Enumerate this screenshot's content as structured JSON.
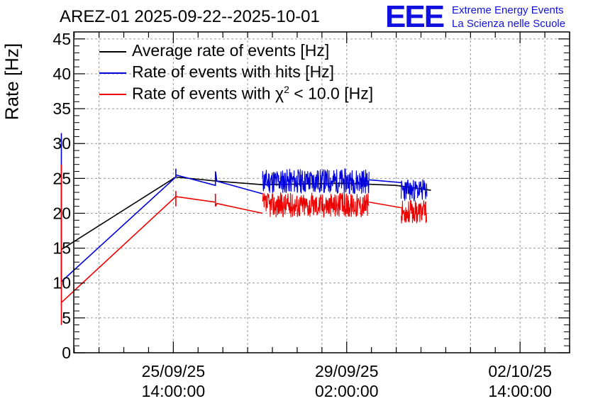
{
  "header": {
    "title": "AREZ-01 2025-09-22--2025-10-01",
    "logo_text": "EEE",
    "logo_line1": "Extreme Energy Events",
    "logo_line2": "La Scienza nelle Scuole"
  },
  "colors": {
    "average": "#000000",
    "hits": "#0000dd",
    "chi2": "#ee0000",
    "logo": "#1010e0"
  },
  "chart_data": {
    "type": "line",
    "title": "AREZ-01 2025-09-22--2025-10-01",
    "ylabel": "Rate [Hz]",
    "xlabel": "",
    "ylim": [
      0,
      46
    ],
    "xlim_days": [
      -2.01,
      8.0
    ],
    "grid": true,
    "yticks": [
      0,
      5,
      10,
      15,
      20,
      25,
      30,
      35,
      40,
      45
    ],
    "xticks": [
      {
        "day": 0,
        "date": "25/09/25",
        "time": "14:00:00"
      },
      {
        "day": 3.5,
        "date": "29/09/25",
        "time": "02:00:00"
      },
      {
        "day": 7,
        "date": "02/10/25",
        "time": "14:00:00"
      }
    ],
    "legend": {
      "position": "top-left",
      "entries": [
        {
          "key": "average",
          "label": "Average rate of events [Hz]"
        },
        {
          "key": "hits",
          "label": "Rate of events with hits [Hz]"
        },
        {
          "key": "chi2",
          "label_prefix": "Rate of events with χ",
          "label_sup": "2",
          "label_suffix": " < 10.0 [Hz]"
        }
      ]
    },
    "series": [
      {
        "key": "average",
        "name": "Average rate of events [Hz]",
        "points": [
          [
            -2.26,
            14.8
          ],
          [
            0.05,
            25.2
          ],
          [
            0.9,
            24.6
          ],
          [
            1.8,
            24.1
          ],
          [
            3.5,
            24.3
          ],
          [
            4.5,
            24.0
          ],
          [
            5.2,
            23.3
          ]
        ],
        "noise": []
      },
      {
        "key": "hits",
        "name": "Rate of events with hits [Hz]",
        "points": [
          [
            -2.26,
            31.5
          ],
          [
            -2.26,
            27.5
          ],
          [
            -2.26,
            10.2
          ],
          [
            0.05,
            25.2
          ],
          [
            0.05,
            26.4
          ],
          [
            0.05,
            25.5
          ],
          [
            0.85,
            24.0
          ],
          [
            0.85,
            26.0
          ],
          [
            0.88,
            24.6
          ],
          [
            1.8,
            22.8
          ]
        ],
        "noise": [
          {
            "from": 1.8,
            "to": 3.95,
            "center": 24.6,
            "amp": 1.8,
            "seed": 11
          },
          {
            "from": 4.6,
            "to": 5.12,
            "center": 23.3,
            "amp": 1.6,
            "seed": 23
          }
        ],
        "bridges": [
          [
            3.95,
            24.8,
            4.6,
            24.4
          ]
        ]
      },
      {
        "key": "chi2",
        "name": "Rate of events with chi2 < 10.0 [Hz]",
        "points": [
          [
            -2.26,
            27.0
          ],
          [
            -2.26,
            4.0
          ],
          [
            -2.26,
            7.2
          ],
          [
            0.05,
            22.4
          ],
          [
            0.05,
            23.2
          ],
          [
            0.05,
            21.0
          ],
          [
            0.05,
            22.4
          ],
          [
            0.85,
            21.6
          ],
          [
            0.85,
            22.8
          ],
          [
            0.85,
            21.0
          ],
          [
            0.88,
            21.4
          ],
          [
            1.8,
            20.0
          ]
        ],
        "noise": [
          {
            "from": 1.8,
            "to": 3.95,
            "center": 21.2,
            "amp": 1.8,
            "seed": 37
          },
          {
            "from": 4.6,
            "to": 5.12,
            "center": 20.2,
            "amp": 1.7,
            "seed": 53
          }
        ],
        "bridges": [
          [
            3.95,
            21.6,
            4.6,
            20.8
          ]
        ]
      }
    ]
  }
}
